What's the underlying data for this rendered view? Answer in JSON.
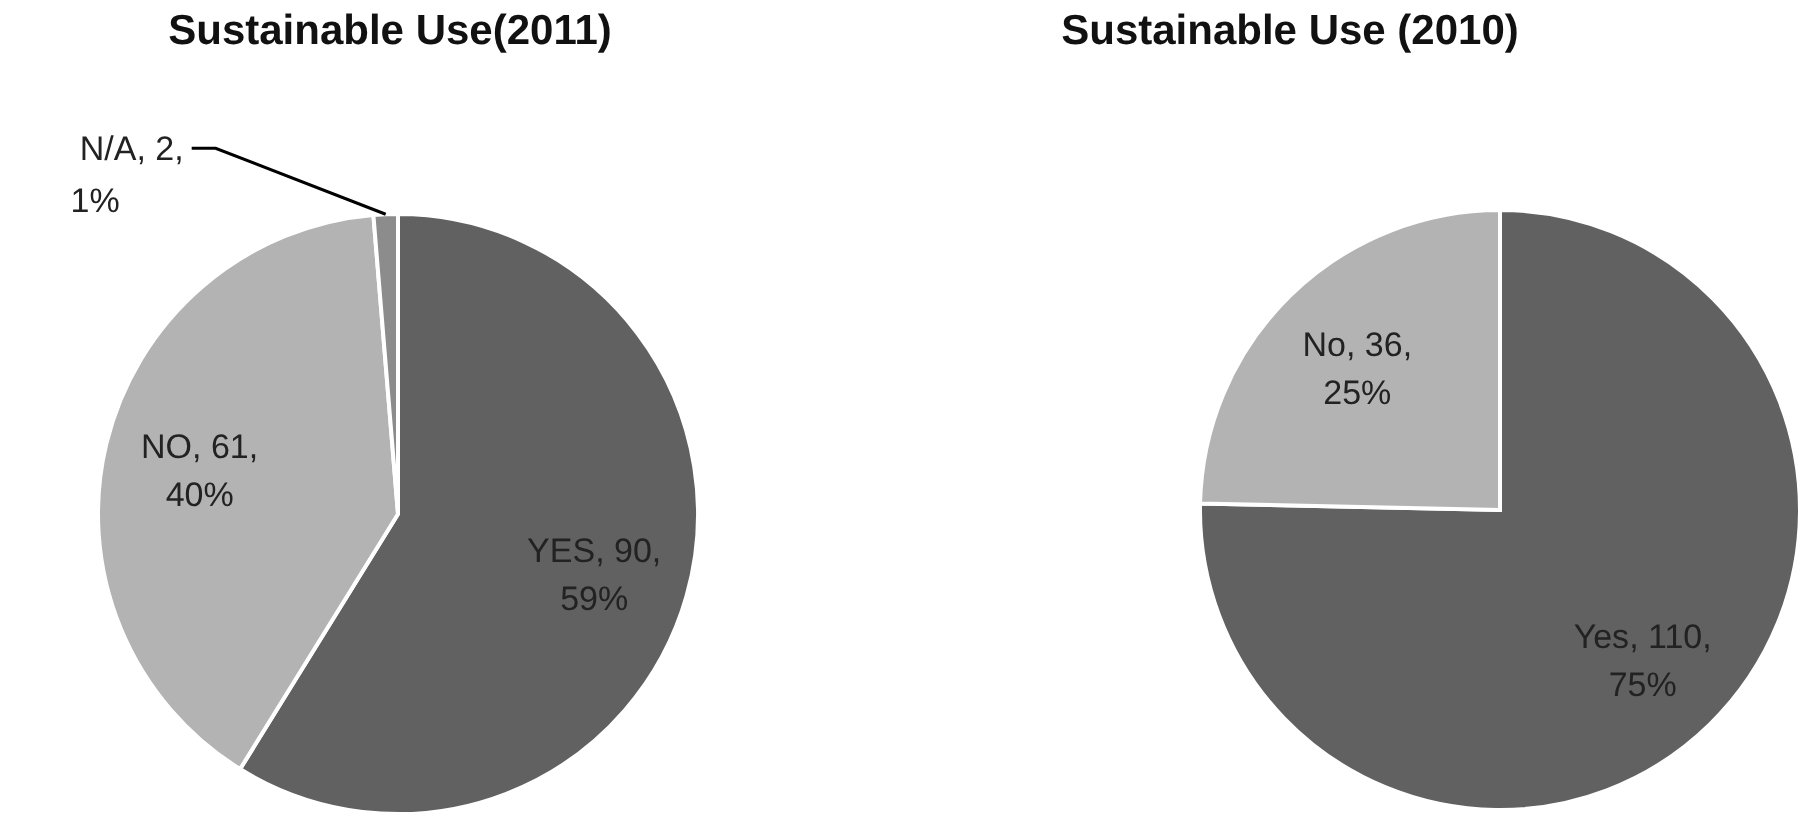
{
  "chart_data": [
    {
      "type": "pie",
      "title": "Sustainable Use(2011)",
      "categories": [
        "YES",
        "NO",
        "N/A"
      ],
      "values": [
        90,
        61,
        2
      ],
      "colors": [
        "#616161",
        "#b3b3b3",
        "#8c8c8c"
      ],
      "value_labels": [
        ", 90, 59%",
        ", 61, 40%",
        ", 2, 1%"
      ]
    },
    {
      "type": "pie",
      "title": "Sustainable Use (2010)",
      "categories": [
        "Yes",
        "No"
      ],
      "values": [
        110,
        36
      ],
      "colors": [
        "#616161",
        "#b3b3b3"
      ],
      "value_labels": [
        ", 110, 75%",
        ", 36, 25%"
      ]
    }
  ]
}
